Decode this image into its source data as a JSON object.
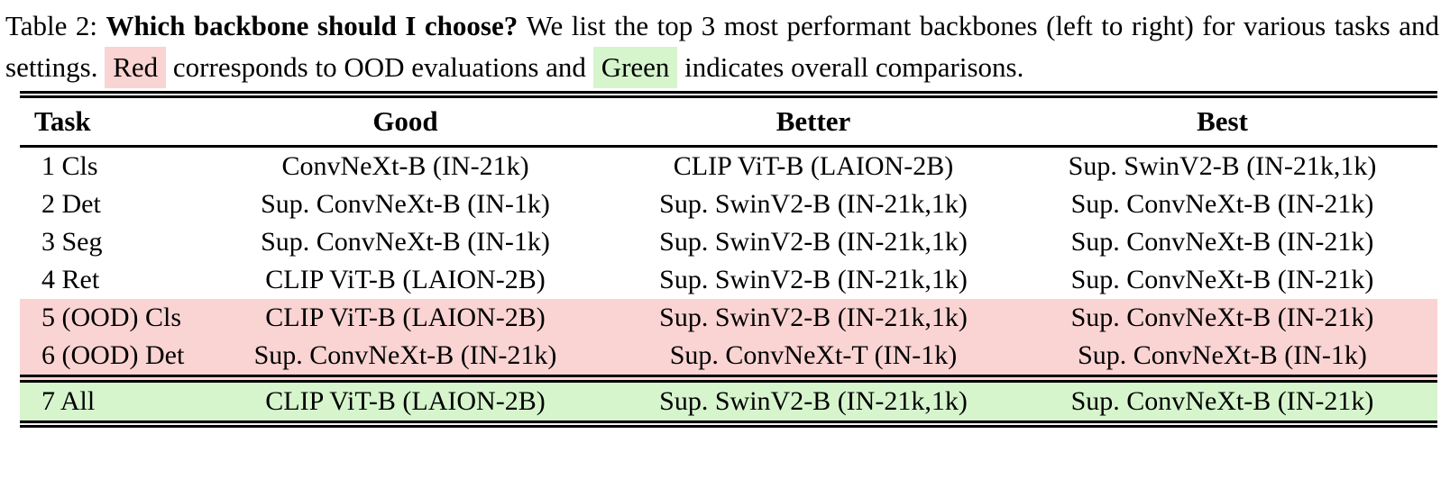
{
  "caption": {
    "label": "Table 2:",
    "title": "Which backbone should I choose?",
    "text_1": "We list the top 3 most performant backbones (left to right) for various tasks and settings.",
    "red_word": "Red",
    "text_2": "corresponds to OOD evaluations and",
    "green_word": "Green",
    "text_3": "indicates overall comparisons."
  },
  "colors": {
    "ood_red": "#fad3d3",
    "overall_green": "#d6f5cd"
  },
  "table": {
    "headers": [
      "Task",
      "Good",
      "Better",
      "Best"
    ],
    "rows": [
      {
        "task": "1 Cls",
        "good": "ConvNeXt-B (IN-21k)",
        "better": "CLIP ViT-B (LAION-2B)",
        "best": "Sup. SwinV2-B (IN-21k,1k)",
        "highlight": "none"
      },
      {
        "task": "2 Det",
        "good": "Sup. ConvNeXt-B (IN-1k)",
        "better": "Sup. SwinV2-B (IN-21k,1k)",
        "best": "Sup. ConvNeXt-B (IN-21k)",
        "highlight": "none"
      },
      {
        "task": "3 Seg",
        "good": "Sup. ConvNeXt-B (IN-1k)",
        "better": "Sup. SwinV2-B (IN-21k,1k)",
        "best": "Sup. ConvNeXt-B (IN-21k)",
        "highlight": "none"
      },
      {
        "task": "4 Ret",
        "good": "CLIP ViT-B (LAION-2B)",
        "better": "Sup. SwinV2-B (IN-21k,1k)",
        "best": "Sup. ConvNeXt-B (IN-21k)",
        "highlight": "none"
      },
      {
        "task": "5 (OOD) Cls",
        "good": "CLIP ViT-B (LAION-2B)",
        "better": "Sup. SwinV2-B (IN-21k,1k)",
        "best": "Sup. ConvNeXt-B (IN-21k)",
        "highlight": "red"
      },
      {
        "task": "6 (OOD) Det",
        "good": "Sup. ConvNeXt-B (IN-21k)",
        "better": "Sup. ConvNeXt-T (IN-1k)",
        "best": "Sup. ConvNeXt-B (IN-1k)",
        "highlight": "red"
      },
      {
        "task": "7 All",
        "good": "CLIP ViT-B (LAION-2B)",
        "better": "Sup. SwinV2-B (IN-21k,1k)",
        "best": "Sup. ConvNeXt-B (IN-21k)",
        "highlight": "green"
      }
    ]
  }
}
